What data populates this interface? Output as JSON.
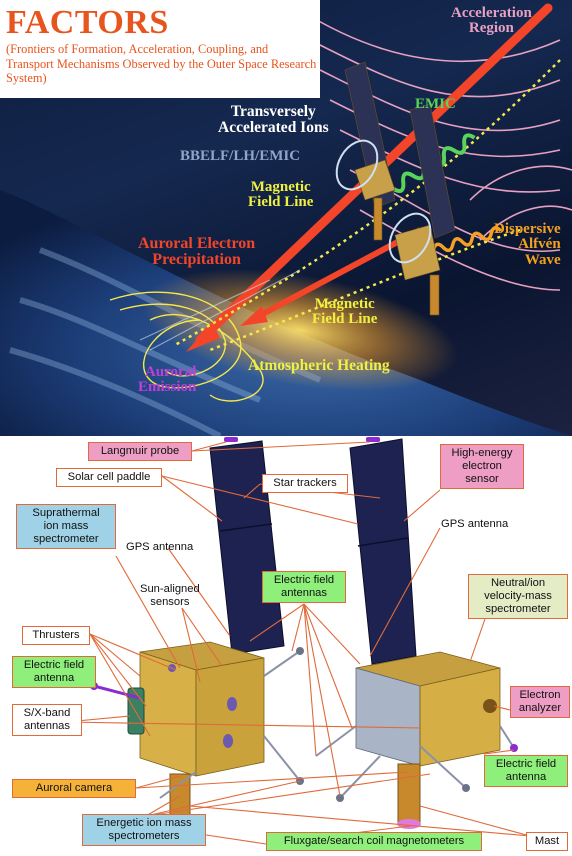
{
  "header": {
    "title": "FACTORS",
    "subtitle": "(Frontiers of Formation, Acceleration, Coupling, and Transport Mechanisms Observed by the Outer Space Research System)"
  },
  "illustration": {
    "labels": {
      "acceleration_region": "Acceleration\nRegion",
      "emic": "EMIC",
      "transversely_accelerated_ions": "Transversely\nAccelerated Ions",
      "bbelf": "BBELF/LH/EMIC",
      "magnetic_field_line_1": "Magnetic\nField Line",
      "auroral_electron_precipitation": "Auroral Electron\nPrecipitation",
      "dispersive_alfven_wave": "Dispersive\nAlfvén\nWave",
      "magnetic_field_line_2": "Magnetic\nField Line",
      "atmospheric_heating": "Atmospheric Heating",
      "auroral_emission": "Auroral\nEmission"
    },
    "colors": {
      "title": "#e8541e",
      "field_lines": "#e6a0c0",
      "emic": "#59d35a",
      "yellow_text": "#f0f040",
      "red_text": "#f2452a",
      "orange_text": "#f5a020",
      "violet_text": "#c03fd8",
      "white_text": "#ffffff",
      "gray_text": "#8fa6c8"
    }
  },
  "diagram": {
    "labels": {
      "langmuir_probe": "Langmuir probe",
      "solar_cell_paddle": "Solar cell paddle",
      "star_trackers": "Star trackers",
      "high_energy_electron_sensor": "High-energy\nelectron\nsensor",
      "suprathermal_ion_mass_spectrometer": "Suprathermal\nion mass\nspectrometer",
      "gps_antenna_left": "GPS antenna",
      "gps_antenna_right": "GPS antenna",
      "sun_aligned_sensors": "Sun-aligned\nsensors",
      "electric_field_antennas": "Electric field\nantennas",
      "neutral_ion_velocity_mass_spectrometer": "Neutral/ion\nvelocity-mass\nspectrometer",
      "thrusters": "Thrusters",
      "electric_field_antenna_left": "Electric field\nantenna",
      "electron_analyzer": "Electron\nanalyzer",
      "s_x_band_antennas": "S/X-band\nantennas",
      "auroral_camera": "Auroral camera",
      "electric_field_antenna_right": "Electric field\nantenna",
      "energetic_ion_mass_spectrometers": "Energetic ion mass\nspectrometers",
      "fluxgate_magnetometers": "Fluxgate/search coil magnetometers",
      "mast": "Mast"
    },
    "colors": {
      "callout_line": "#e06a3a",
      "pink": "#ee9ec4",
      "blue": "#9fd2e6",
      "green": "#8ef07a",
      "orange": "#f6b238",
      "tan": "#e4ecc6",
      "body_gold": "#d8a838",
      "panel_navy": "#1e2250",
      "boom_gray": "#8a92a8",
      "mast_bronze": "#c7892c",
      "probe_purple": "#8a2ccf"
    }
  }
}
